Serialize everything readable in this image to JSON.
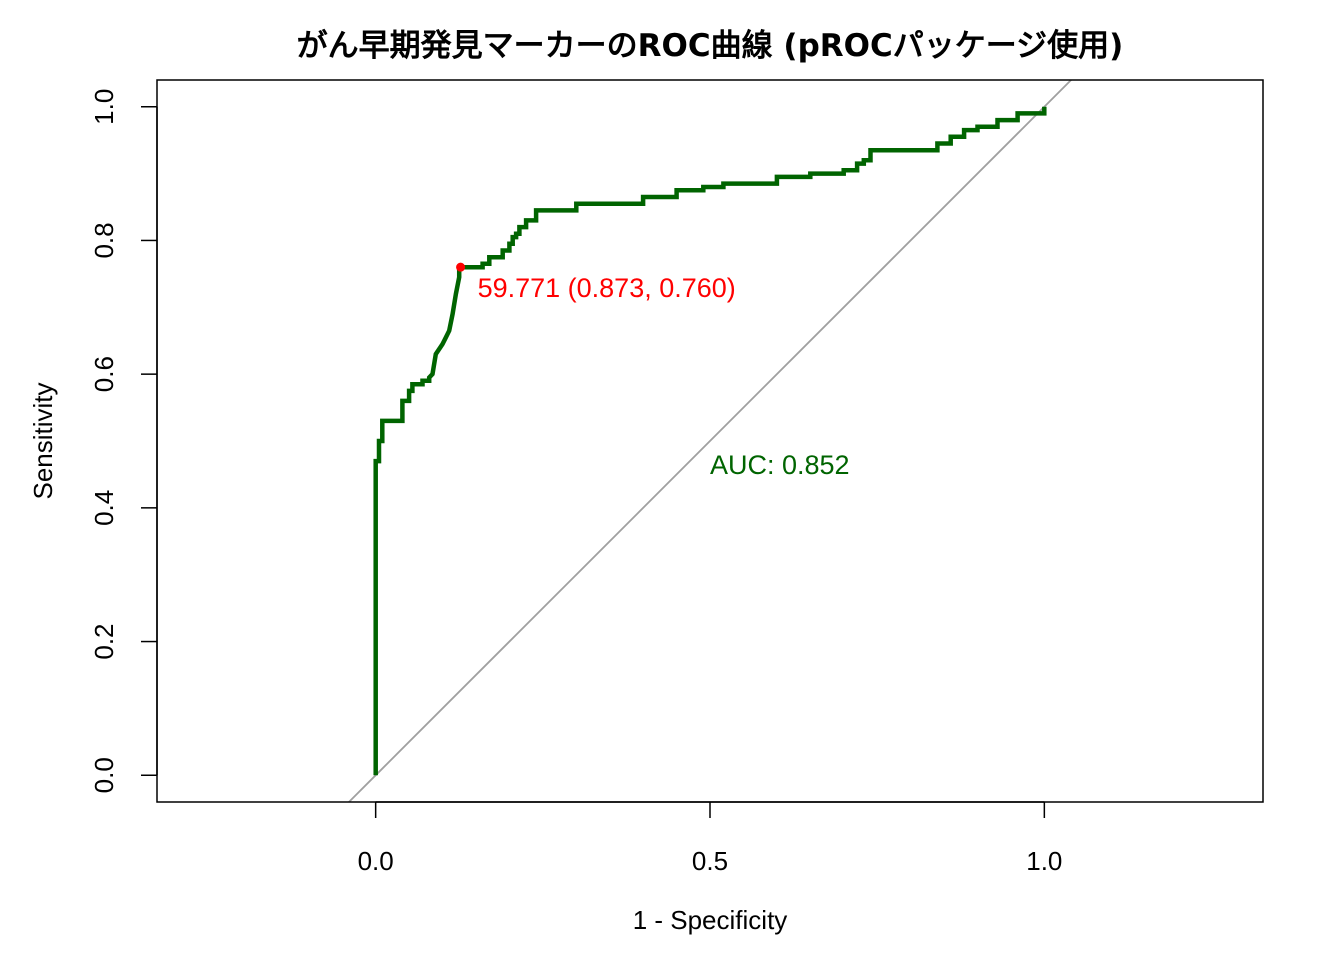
{
  "chart_data": {
    "type": "line",
    "title": "がん早期発見マーカーのROC曲線 (pROCパッケージ使用)",
    "xlabel": "1 - Specificity",
    "ylabel": "Sensitivity",
    "xlim": [
      -0.327,
      1.327
    ],
    "ylim": [
      -0.04,
      1.04
    ],
    "xticks": [
      "0.0",
      "0.5",
      "1.0"
    ],
    "yticks": [
      "0.0",
      "0.2",
      "0.4",
      "0.6",
      "0.8",
      "1.0"
    ],
    "grid": false,
    "colors": {
      "curve": "#006400",
      "reference": "#a0a0a0",
      "best_point": "#ff0000"
    },
    "series": [
      {
        "x": [
          0.0,
          0.0,
          0.005,
          0.005,
          0.01,
          0.01,
          0.02,
          0.02,
          0.04,
          0.04,
          0.05,
          0.05,
          0.055,
          0.055,
          0.07,
          0.07,
          0.08,
          0.08,
          0.08,
          0.085,
          0.085,
          0.09,
          0.09,
          0.1,
          0.1,
          0.105,
          0.105,
          0.11,
          0.11,
          0.115,
          0.115,
          0.12,
          0.12,
          0.125,
          0.125,
          0.16,
          0.16,
          0.17,
          0.17,
          0.19,
          0.19,
          0.2,
          0.2,
          0.205,
          0.205,
          0.21,
          0.21,
          0.215,
          0.215,
          0.225,
          0.225,
          0.24,
          0.24,
          0.3,
          0.3,
          0.4,
          0.4,
          0.45,
          0.45,
          0.49,
          0.49,
          0.52,
          0.52,
          0.6,
          0.6,
          0.65,
          0.65,
          0.7,
          0.7,
          0.72,
          0.72,
          0.73,
          0.73,
          0.74,
          0.74,
          0.84,
          0.84,
          0.86,
          0.86,
          0.88,
          0.88,
          0.9,
          0.9,
          0.93,
          0.93,
          0.96,
          0.96,
          1.0,
          1.0
        ],
        "y": [
          0.0,
          0.47,
          0.47,
          0.5,
          0.5,
          0.53,
          0.53,
          0.53,
          0.53,
          0.56,
          0.56,
          0.575,
          0.575,
          0.585,
          0.585,
          0.59,
          0.59,
          0.595,
          0.595,
          0.6,
          0.6,
          0.63,
          0.63,
          0.645,
          0.645,
          0.655,
          0.655,
          0.665,
          0.665,
          0.69,
          0.69,
          0.72,
          0.72,
          0.745,
          0.76,
          0.76,
          0.765,
          0.765,
          0.775,
          0.775,
          0.785,
          0.785,
          0.795,
          0.795,
          0.805,
          0.805,
          0.81,
          0.81,
          0.82,
          0.82,
          0.83,
          0.83,
          0.845,
          0.845,
          0.855,
          0.855,
          0.865,
          0.865,
          0.875,
          0.875,
          0.88,
          0.88,
          0.885,
          0.885,
          0.895,
          0.895,
          0.9,
          0.9,
          0.905,
          0.905,
          0.915,
          0.915,
          0.92,
          0.92,
          0.935,
          0.935,
          0.945,
          0.945,
          0.955,
          0.955,
          0.965,
          0.965,
          0.97,
          0.97,
          0.98,
          0.98,
          0.99,
          0.99,
          1.0
        ]
      }
    ],
    "best_point": {
      "x": 0.127,
      "y": 0.76,
      "label": "59.771 (0.873, 0.760)"
    },
    "auc_label": "AUC: 0.852",
    "reference_line": {
      "from": [
        -0.04,
        -0.04
      ],
      "to": [
        1.04,
        1.04
      ]
    }
  }
}
